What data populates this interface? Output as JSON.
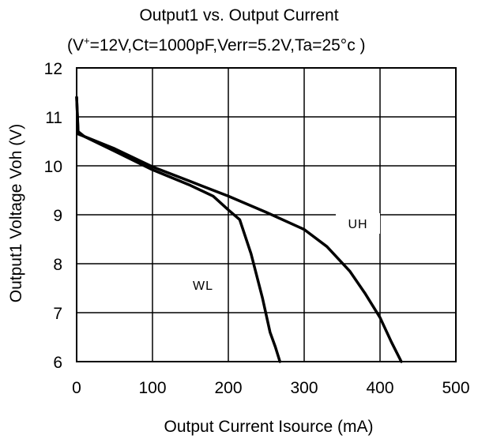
{
  "chart_data": {
    "type": "line",
    "title": "Output1 vs. Output Current",
    "subtitle_prefix": "(V",
    "subtitle_sup": "+",
    "subtitle_rest": "=12V,Ct=1000pF,Verr=5.2V,Ta=25°c   )",
    "xlabel": "Output Current  Isource  (mA)",
    "ylabel": "Output1 Voltage  Voh  (V)",
    "xlim": [
      0,
      500
    ],
    "ylim": [
      6,
      12
    ],
    "xticks": [
      "0",
      "100",
      "200",
      "300",
      "400",
      "500"
    ],
    "yticks": [
      "6",
      "7",
      "8",
      "9",
      "10",
      "11",
      "12"
    ],
    "grid": true,
    "series": [
      {
        "name": "UH",
        "x": [
          0,
          2,
          10,
          50,
          100,
          150,
          200,
          250,
          300,
          330,
          360,
          380,
          400,
          415,
          428
        ],
        "y": [
          11.4,
          10.65,
          10.6,
          10.35,
          9.98,
          9.68,
          9.38,
          9.05,
          8.7,
          8.35,
          7.85,
          7.4,
          6.9,
          6.4,
          6.0
        ]
      },
      {
        "name": "WL",
        "x": [
          0,
          2,
          10,
          50,
          100,
          150,
          180,
          200,
          215,
          230,
          245,
          255,
          262,
          268
        ],
        "y": [
          11.4,
          10.7,
          10.6,
          10.3,
          9.92,
          9.6,
          9.38,
          9.1,
          8.9,
          8.2,
          7.3,
          6.6,
          6.3,
          6.0
        ]
      }
    ],
    "annotations": [
      "UH",
      "WL"
    ]
  }
}
